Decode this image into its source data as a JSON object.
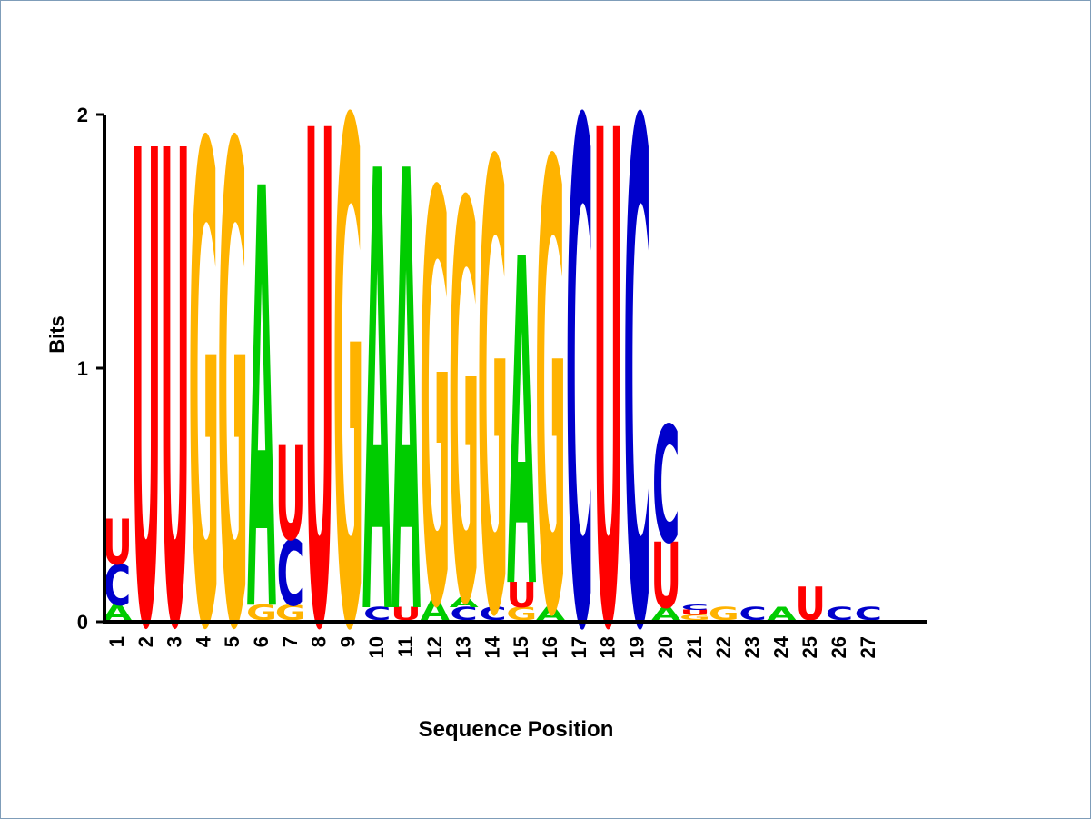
{
  "chart_data": {
    "type": "sequence-logo",
    "xlabel": "Sequence Position",
    "ylabel": "Bits",
    "ylim": [
      0,
      2
    ],
    "y_ticks": [
      "0",
      "1",
      "2"
    ],
    "colors": {
      "A": "#00cc00",
      "C": "#0000cc",
      "G": "#ffb300",
      "U": "#ff0000"
    },
    "positions": [
      {
        "pos": "1",
        "stack": [
          [
            "A",
            0.06
          ],
          [
            "C",
            0.16
          ],
          [
            "U",
            0.18
          ]
        ]
      },
      {
        "pos": "2",
        "stack": [
          [
            "U",
            1.87
          ]
        ]
      },
      {
        "pos": "3",
        "stack": [
          [
            "U",
            1.87
          ]
        ]
      },
      {
        "pos": "4",
        "stack": [
          [
            "G",
            1.89
          ]
        ]
      },
      {
        "pos": "5",
        "stack": [
          [
            "G",
            1.89
          ]
        ]
      },
      {
        "pos": "6",
        "stack": [
          [
            "G",
            0.06
          ],
          [
            "A",
            1.66
          ]
        ]
      },
      {
        "pos": "7",
        "stack": [
          [
            "G",
            0.06
          ],
          [
            "C",
            0.26
          ],
          [
            "U",
            0.37
          ]
        ]
      },
      {
        "pos": "8",
        "stack": [
          [
            "U",
            1.95
          ]
        ]
      },
      {
        "pos": "9",
        "stack": [
          [
            "G",
            1.98
          ]
        ]
      },
      {
        "pos": "10",
        "stack": [
          [
            "C",
            0.05
          ],
          [
            "A",
            1.74
          ]
        ]
      },
      {
        "pos": "11",
        "stack": [
          [
            "U",
            0.05
          ],
          [
            "A",
            1.74
          ]
        ]
      },
      {
        "pos": "12",
        "stack": [
          [
            "A",
            0.08
          ],
          [
            "G",
            1.62
          ]
        ]
      },
      {
        "pos": "13",
        "stack": [
          [
            "C",
            0.05
          ],
          [
            "A",
            0.04
          ],
          [
            "G",
            1.57
          ]
        ]
      },
      {
        "pos": "14",
        "stack": [
          [
            "C",
            0.05
          ],
          [
            "G",
            1.77
          ]
        ]
      },
      {
        "pos": "15",
        "stack": [
          [
            "G",
            0.05
          ],
          [
            "U",
            0.1
          ],
          [
            "A",
            1.29
          ]
        ]
      },
      {
        "pos": "16",
        "stack": [
          [
            "A",
            0.05
          ],
          [
            "G",
            1.77
          ]
        ]
      },
      {
        "pos": "17",
        "stack": [
          [
            "C",
            1.98
          ]
        ]
      },
      {
        "pos": "18",
        "stack": [
          [
            "U",
            1.95
          ]
        ]
      },
      {
        "pos": "19",
        "stack": [
          [
            "C",
            1.98
          ]
        ]
      },
      {
        "pos": "20",
        "stack": [
          [
            "A",
            0.05
          ],
          [
            "U",
            0.26
          ],
          [
            "C",
            0.46
          ]
        ]
      },
      {
        "pos": "21",
        "stack": [
          [
            "G",
            0.02
          ],
          [
            "U",
            0.02
          ],
          [
            "C",
            0.02
          ]
        ]
      },
      {
        "pos": "22",
        "stack": [
          [
            "G",
            0.05
          ]
        ]
      },
      {
        "pos": "23",
        "stack": [
          [
            "C",
            0.05
          ]
        ]
      },
      {
        "pos": "24",
        "stack": [
          [
            "A",
            0.05
          ]
        ]
      },
      {
        "pos": "25",
        "stack": [
          [
            "U",
            0.13
          ]
        ]
      },
      {
        "pos": "26",
        "stack": [
          [
            "C",
            0.05
          ]
        ]
      },
      {
        "pos": "27",
        "stack": [
          [
            "C",
            0.05
          ]
        ]
      }
    ]
  }
}
